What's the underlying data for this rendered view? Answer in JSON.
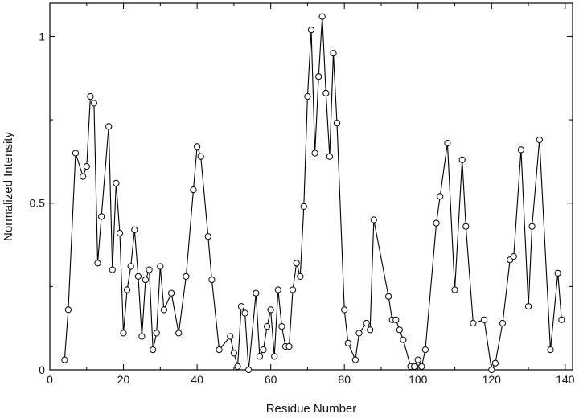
{
  "chart_data": {
    "type": "line",
    "title": "",
    "xlabel": "Residue Number",
    "ylabel": "Normalized Intensity",
    "xlim": [
      0,
      142
    ],
    "ylim": [
      0,
      1.1
    ],
    "x_ticks": [
      0,
      20,
      40,
      60,
      80,
      100,
      120,
      140
    ],
    "y_ticks": [
      0,
      0.5,
      1
    ],
    "y_tick_labels": [
      "0",
      "0.5",
      "1"
    ],
    "grid": false,
    "marker": "open-circle",
    "line_color": "#000000",
    "series": [
      {
        "x": [
          4,
          5,
          7,
          9,
          10,
          11,
          12,
          13,
          14,
          16,
          17,
          18,
          19,
          20,
          21,
          22,
          23,
          24,
          25,
          26,
          27,
          28,
          29,
          30,
          31,
          33,
          35,
          37,
          39,
          40,
          41,
          43,
          44,
          46,
          49,
          50,
          51,
          52,
          53,
          54,
          56,
          57,
          58,
          59,
          60,
          61,
          62,
          63,
          64,
          65,
          66,
          67,
          68,
          69,
          70,
          71,
          72,
          73,
          74,
          75,
          76,
          77,
          78,
          80,
          81,
          83,
          84,
          86,
          87,
          88,
          92,
          93,
          94,
          95,
          96,
          98,
          99,
          100,
          101,
          102,
          105,
          106,
          108,
          110,
          112,
          113,
          115,
          118,
          120,
          121,
          123,
          125,
          126,
          128,
          130,
          131,
          133,
          136,
          138,
          139
        ],
        "y": [
          0.03,
          0.18,
          0.65,
          0.58,
          0.61,
          0.82,
          0.8,
          0.32,
          0.46,
          0.73,
          0.3,
          0.56,
          0.41,
          0.11,
          0.24,
          0.31,
          0.42,
          0.28,
          0.1,
          0.27,
          0.3,
          0.06,
          0.11,
          0.31,
          0.18,
          0.23,
          0.11,
          0.28,
          0.54,
          0.67,
          0.64,
          0.4,
          0.27,
          0.06,
          0.1,
          0.05,
          0.01,
          0.19,
          0.17,
          0.0,
          0.23,
          0.04,
          0.06,
          0.13,
          0.18,
          0.04,
          0.24,
          0.13,
          0.07,
          0.07,
          0.24,
          0.32,
          0.28,
          0.49,
          0.82,
          1.02,
          0.65,
          0.88,
          1.06,
          0.83,
          0.64,
          0.95,
          0.74,
          0.18,
          0.08,
          0.03,
          0.11,
          0.14,
          0.12,
          0.45,
          0.22,
          0.15,
          0.15,
          0.12,
          0.09,
          0.01,
          0.01,
          0.03,
          0.01,
          0.06,
          0.44,
          0.52,
          0.68,
          0.24,
          0.63,
          0.43,
          0.14,
          0.15,
          0.0,
          0.02,
          0.14,
          0.33,
          0.34,
          0.66,
          0.19,
          0.43,
          0.69,
          0.06,
          0.29,
          0.15
        ]
      }
    ]
  }
}
